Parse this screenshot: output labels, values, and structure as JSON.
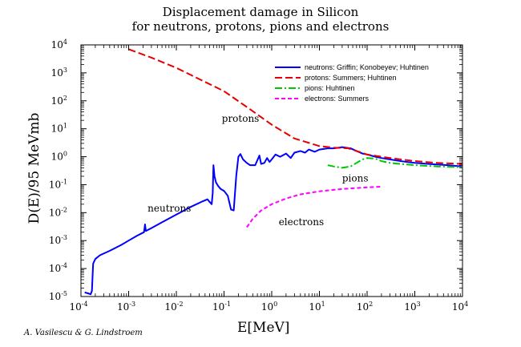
{
  "chart_data": {
    "type": "line",
    "title": "Displacement damage in Silicon",
    "subtitle": "for neutrons, protons, pions and electrons",
    "xlabel": "E[MeV]",
    "ylabel": "D(E)/95 MeVmb",
    "x_scale": "log",
    "y_scale": "log",
    "xlim": [
      0.0001,
      10000
    ],
    "ylim": [
      1e-05,
      10000
    ],
    "x_ticks": [
      "10^-4",
      "10^-3",
      "10^-2",
      "10^-1",
      "10^0",
      "10^1",
      "10^2",
      "10^3",
      "10^4"
    ],
    "y_ticks": [
      "10^-5",
      "10^-4",
      "10^-3",
      "10^-2",
      "10^-1",
      "10^0",
      "10^1",
      "10^2",
      "10^3",
      "10^4"
    ],
    "grid": false,
    "legend_position": "top-right",
    "credit": "A. Vasilescu & G. Lindstroem",
    "series": [
      {
        "name": "neutrons: Griffin; Konobeyev; Huhtinen",
        "color": "#0000ff",
        "dash": "solid",
        "annotation": "neutrons",
        "points": [
          [
            0.00012,
            1.4e-05
          ],
          [
            0.00014,
            1.3e-05
          ],
          [
            0.00016,
            1.2e-05
          ],
          [
            0.00017,
            1.6e-05
          ],
          [
            0.00018,
            0.00015
          ],
          [
            0.0002,
            0.00022
          ],
          [
            0.00025,
            0.0003
          ],
          [
            0.0004,
            0.00043
          ],
          [
            0.0007,
            0.0007
          ],
          [
            0.001,
            0.001
          ],
          [
            0.0015,
            0.0015
          ],
          [
            0.0021,
            0.002
          ],
          [
            0.0022,
            0.0038
          ],
          [
            0.0023,
            0.0022
          ],
          [
            0.003,
            0.0028
          ],
          [
            0.005,
            0.0045
          ],
          [
            0.01,
            0.0085
          ],
          [
            0.02,
            0.016
          ],
          [
            0.035,
            0.025
          ],
          [
            0.045,
            0.03
          ],
          [
            0.05,
            0.024
          ],
          [
            0.055,
            0.02
          ],
          [
            0.058,
            0.05
          ],
          [
            0.06,
            0.5
          ],
          [
            0.063,
            0.2
          ],
          [
            0.068,
            0.12
          ],
          [
            0.075,
            0.09
          ],
          [
            0.085,
            0.07
          ],
          [
            0.1,
            0.06
          ],
          [
            0.12,
            0.04
          ],
          [
            0.14,
            0.013
          ],
          [
            0.16,
            0.012
          ],
          [
            0.18,
            0.2
          ],
          [
            0.2,
            1.0
          ],
          [
            0.22,
            1.25
          ],
          [
            0.25,
            0.8
          ],
          [
            0.3,
            0.6
          ],
          [
            0.35,
            0.5
          ],
          [
            0.45,
            0.5
          ],
          [
            0.55,
            1.1
          ],
          [
            0.6,
            0.55
          ],
          [
            0.7,
            0.6
          ],
          [
            0.8,
            0.9
          ],
          [
            0.9,
            0.65
          ],
          [
            1.0,
            0.8
          ],
          [
            1.2,
            1.2
          ],
          [
            1.5,
            1.0
          ],
          [
            2.0,
            1.3
          ],
          [
            2.5,
            0.9
          ],
          [
            3.0,
            1.4
          ],
          [
            4.0,
            1.6
          ],
          [
            5.0,
            1.4
          ],
          [
            6.0,
            1.8
          ],
          [
            8.0,
            1.5
          ],
          [
            10,
            1.8
          ],
          [
            15,
            2.0
          ],
          [
            20,
            2.0
          ],
          [
            30,
            2.2
          ],
          [
            45,
            2.0
          ],
          [
            60,
            1.6
          ],
          [
            80,
            1.3
          ],
          [
            100,
            1.2
          ],
          [
            150,
            1.0
          ],
          [
            200,
            0.9
          ],
          [
            300,
            0.8
          ],
          [
            500,
            0.7
          ],
          [
            1000,
            0.6
          ],
          [
            2000,
            0.55
          ],
          [
            5000,
            0.5
          ],
          [
            10000,
            0.45
          ]
        ]
      },
      {
        "name": "protons: Summers; Huhtinen",
        "color": "#e60000",
        "dash": "long-dash",
        "annotation": "protons",
        "points": [
          [
            0.001,
            7000
          ],
          [
            0.003,
            3500
          ],
          [
            0.01,
            1500
          ],
          [
            0.03,
            600
          ],
          [
            0.1,
            220
          ],
          [
            0.3,
            60
          ],
          [
            1,
            14
          ],
          [
            3,
            4.5
          ],
          [
            10,
            2.4
          ],
          [
            20,
            2.1
          ],
          [
            40,
            2.0
          ],
          [
            60,
            1.6
          ],
          [
            100,
            1.2
          ],
          [
            200,
            1.0
          ],
          [
            500,
            0.8
          ],
          [
            1000,
            0.7
          ],
          [
            3000,
            0.6
          ],
          [
            10000,
            0.55
          ]
        ]
      },
      {
        "name": "pions: Huhtinen",
        "color": "#00c800",
        "dash": "dash-dot",
        "annotation": "pions",
        "points": [
          [
            15,
            0.5
          ],
          [
            20,
            0.45
          ],
          [
            30,
            0.4
          ],
          [
            45,
            0.45
          ],
          [
            60,
            0.6
          ],
          [
            80,
            0.8
          ],
          [
            100,
            0.9
          ],
          [
            150,
            0.85
          ],
          [
            200,
            0.7
          ],
          [
            300,
            0.6
          ],
          [
            500,
            0.55
          ],
          [
            1000,
            0.5
          ],
          [
            3000,
            0.45
          ],
          [
            10000,
            0.42
          ]
        ]
      },
      {
        "name": "electrons: Summers",
        "color": "#ff00ff",
        "dash": "short-dash",
        "annotation": "electrons",
        "points": [
          [
            0.3,
            0.003
          ],
          [
            0.4,
            0.006
          ],
          [
            0.6,
            0.012
          ],
          [
            1,
            0.02
          ],
          [
            2,
            0.032
          ],
          [
            4,
            0.045
          ],
          [
            10,
            0.058
          ],
          [
            30,
            0.07
          ],
          [
            100,
            0.08
          ],
          [
            200,
            0.085
          ]
        ]
      }
    ]
  }
}
